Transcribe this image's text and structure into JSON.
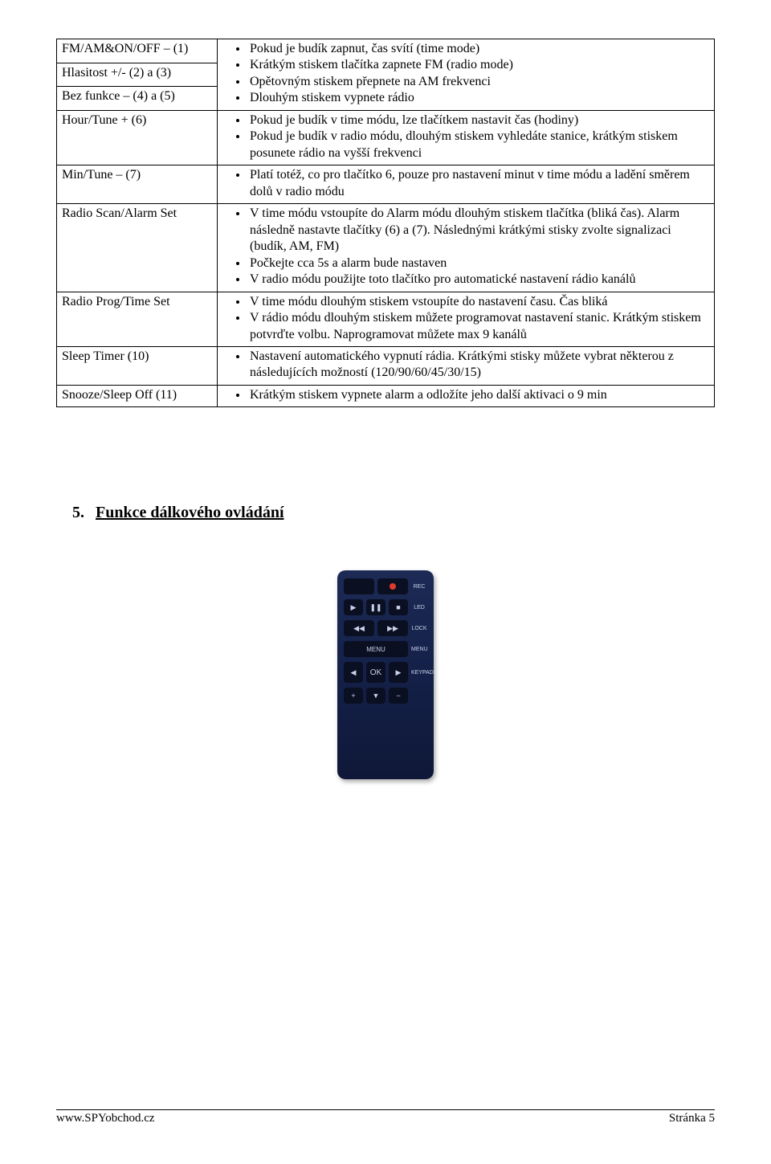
{
  "table": {
    "rows": [
      {
        "label": "FM/AM&ON/OFF – (1)",
        "bullets": [
          "Pokud je budík zapnut, čas svítí (time mode)",
          "Krátkým stiskem tlačítka zapnete FM (radio mode)",
          "Opětovným stiskem přepnete na AM frekvenci",
          "Dlouhým stiskem vypnete rádio"
        ]
      },
      {
        "label": "Hlasitost +/-  (2) a (3)",
        "bullets": null
      },
      {
        "label": "Bez funkce – (4) a (5)",
        "bullets": null
      },
      {
        "label": "Hour/Tune + (6)",
        "bullets": [
          "Pokud je budík v time módu, lze tlačítkem nastavit čas (hodiny)",
          "Pokud je budík v radio módu, dlouhým stiskem vyhledáte stanice, krátkým stiskem posunete rádio na vyšší frekvenci"
        ]
      },
      {
        "label": "Min/Tune – (7)",
        "bullets": [
          "Platí totéž, co pro tlačítko 6, pouze pro nastavení minut v time módu a ladění směrem dolů v radio módu"
        ]
      },
      {
        "label": "Radio Scan/Alarm Set",
        "bullets": [
          "V time módu vstoupíte do Alarm módu dlouhým stiskem tlačítka (bliká čas). Alarm následně nastavte tlačítky (6) a (7). Následnými krátkými stisky zvolte signalizaci (budík, AM, FM)",
          "Počkejte cca 5s a alarm bude nastaven",
          "V radio módu použijte toto tlačítko pro automatické nastavení rádio kanálů"
        ]
      },
      {
        "label": "Radio Prog/Time Set",
        "bullets": [
          "V time módu dlouhým stiskem vstoupíte do nastavení času. Čas bliká",
          "V rádio módu dlouhým stiskem můžete programovat nastavení stanic. Krátkým stiskem potvrďte volbu. Naprogramovat můžete max 9 kanálů"
        ]
      },
      {
        "label": "Sleep Timer (10)",
        "bullets": [
          "Nastavení automatického vypnutí rádia. Krátkými stisky můžete vybrat některou z následujících možností (120/90/60/45/30/15)"
        ]
      },
      {
        "label": "Snooze/Sleep Off (11)",
        "bullets": [
          "Krátkým stiskem vypnete alarm a odložíte jeho další aktivaci o 9 min"
        ]
      }
    ]
  },
  "section": {
    "number": "5.",
    "title": "Funkce dálkového ovládání"
  },
  "remote": {
    "row1_right_label": "REC",
    "row2": [
      "▶",
      "❚❚",
      "■"
    ],
    "row2_label": "LED",
    "row3": [
      "◀◀",
      "▶▶"
    ],
    "row3_label": "LOCK",
    "row4_label": "MENU",
    "row5": [
      "◀",
      "OK",
      "▶"
    ],
    "row5_label": "KEYPAD",
    "row6": [
      "+",
      "▼",
      "−"
    ]
  },
  "footer": {
    "left": "www.SPYobchod.cz",
    "right": "Stránka 5"
  }
}
